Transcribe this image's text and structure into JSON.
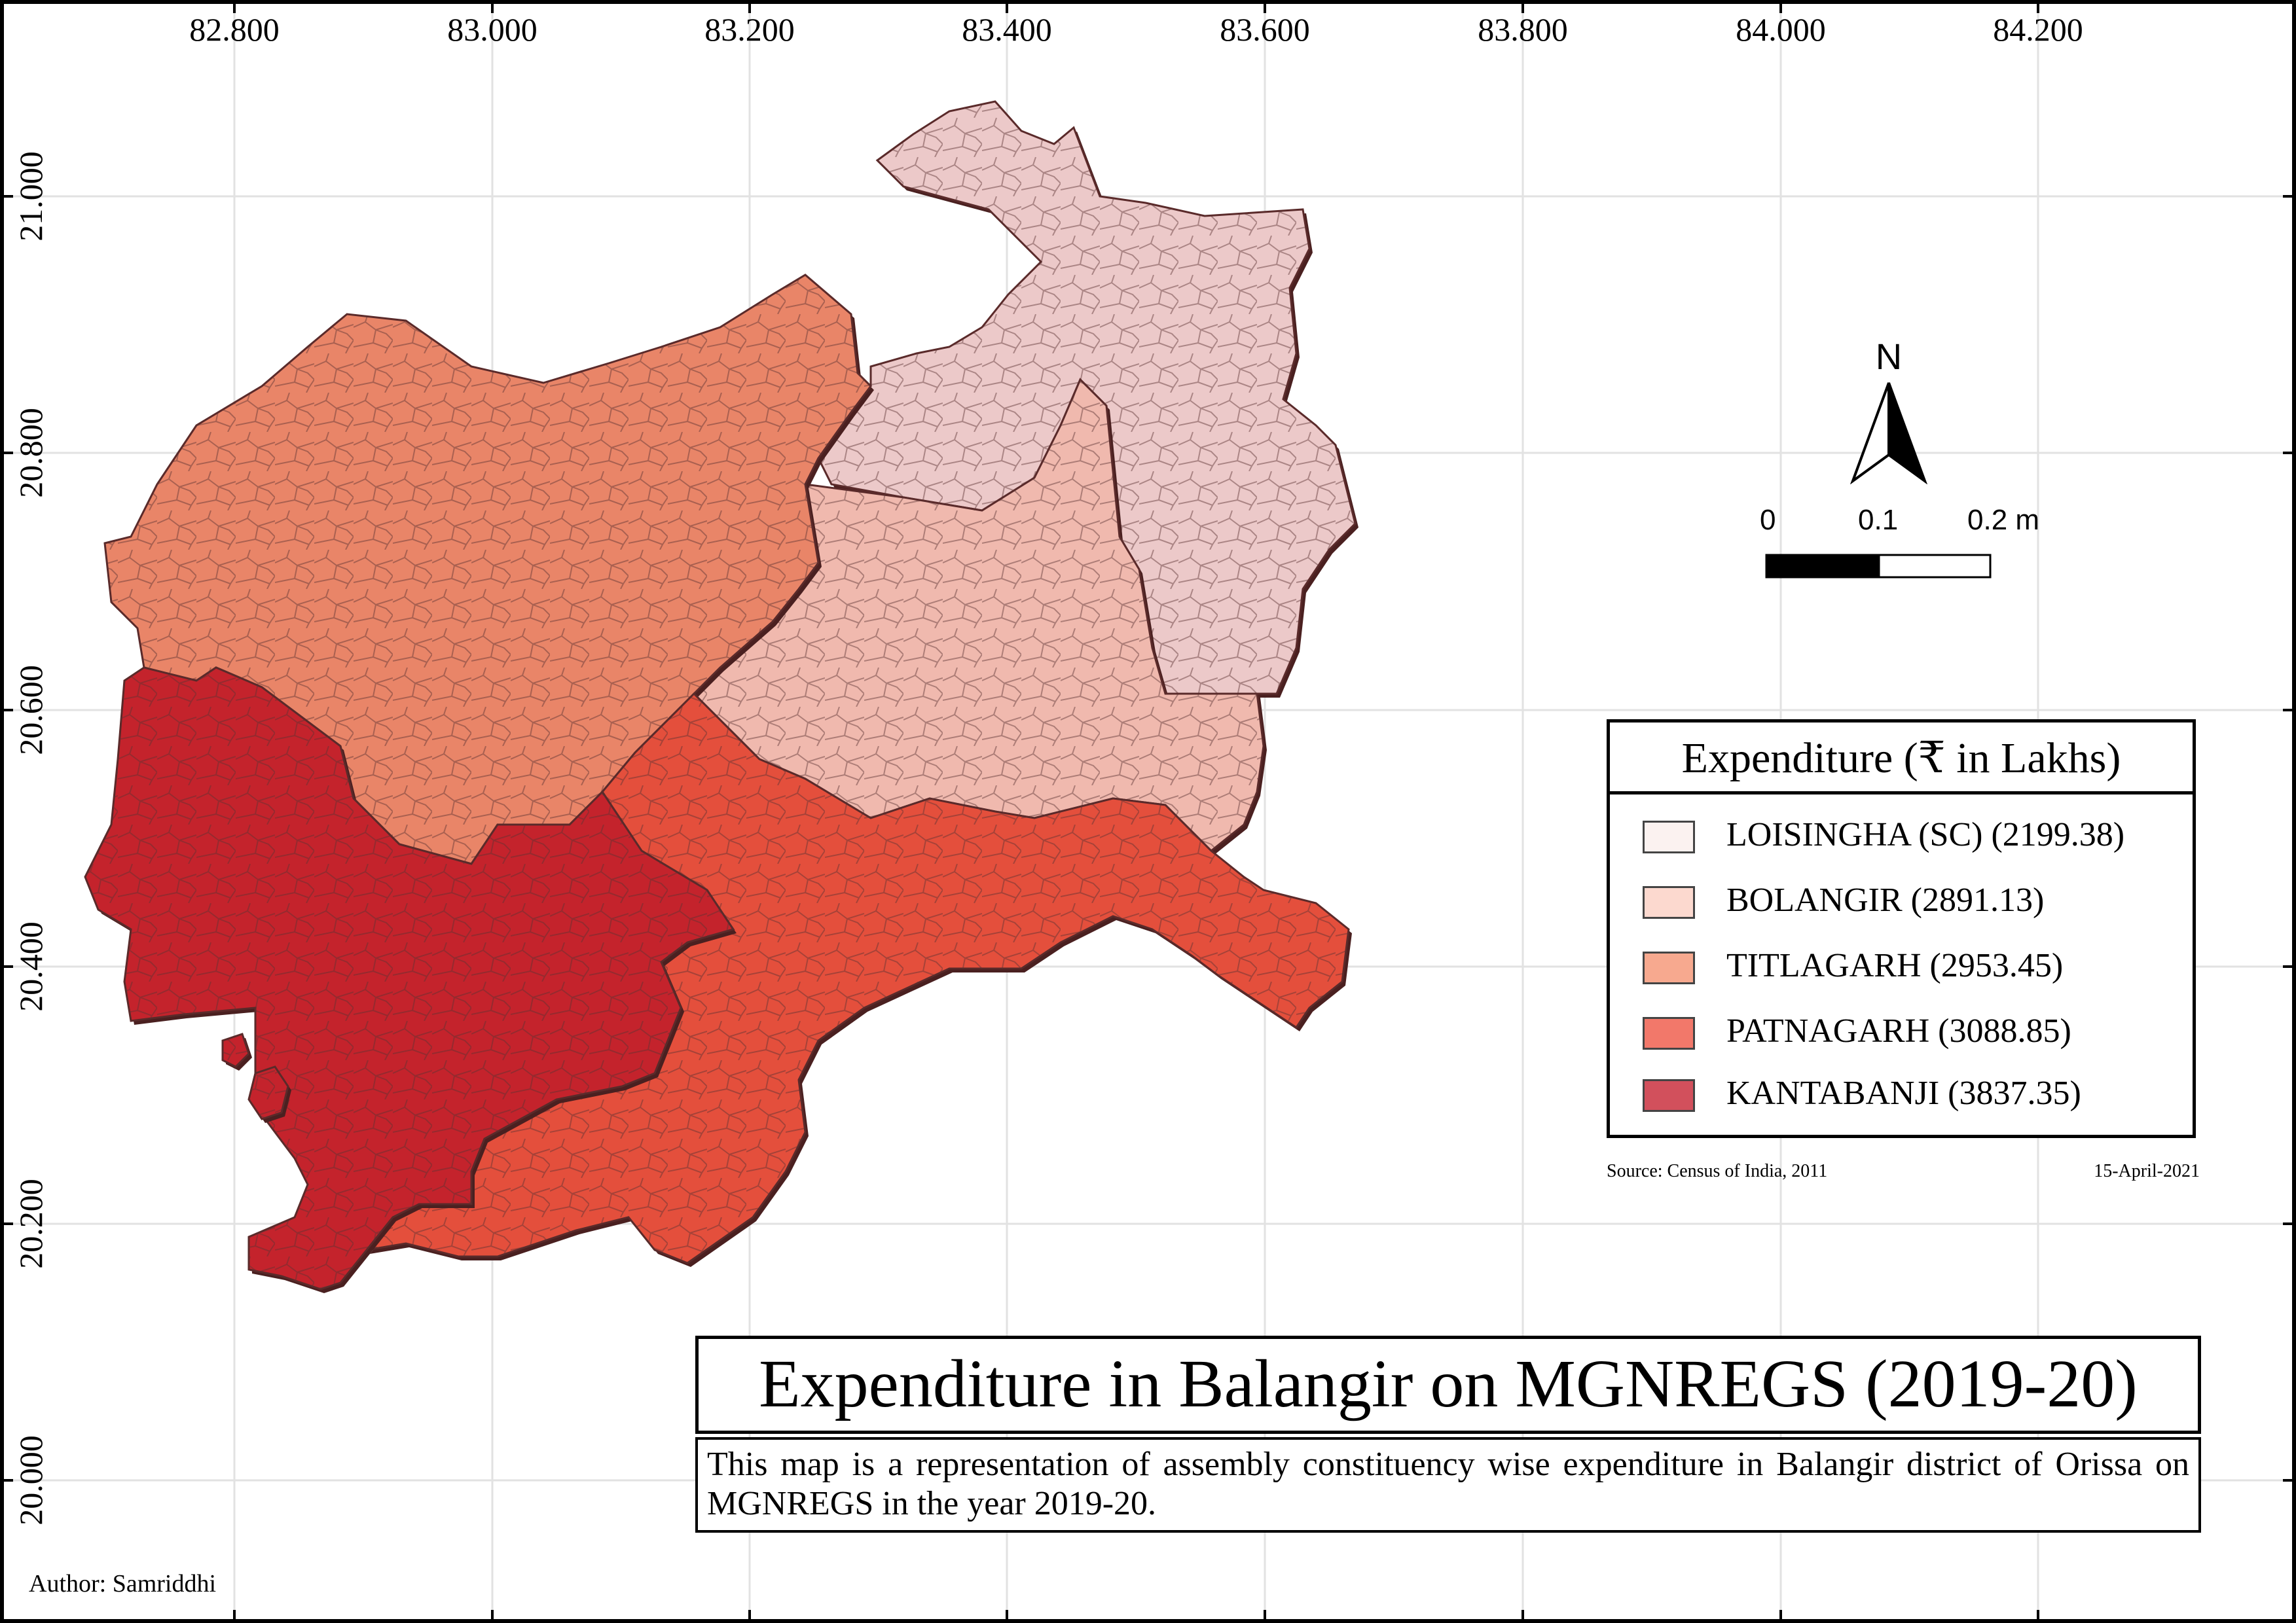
{
  "map": {
    "x_ticks": [
      "82.800",
      "83.000",
      "83.200",
      "83.400",
      "83.600",
      "83.800",
      "84.000",
      "84.200"
    ],
    "y_ticks": [
      "21.000",
      "20.800",
      "20.600",
      "20.400",
      "20.200",
      "20.000"
    ],
    "regions": [
      {
        "name": "LOISINGHA (SC)",
        "value": 2199.38,
        "color": "#ecc9c9"
      },
      {
        "name": "BOLANGIR",
        "value": 2891.13,
        "color": "#f0b9ae"
      },
      {
        "name": "TITLAGARH",
        "value": 2953.45,
        "color": "#e98568"
      },
      {
        "name": "PATNAGARH",
        "value": 3088.85,
        "color": "#e44f3c"
      },
      {
        "name": "KANTABANJI",
        "value": 3837.35,
        "color": "#c4232c"
      }
    ]
  },
  "legend": {
    "title": "Expenditure (₹ in Lakhs)",
    "items": [
      {
        "label": "LOISINGHA (SC) (2199.38)",
        "color": "#fbf2f0"
      },
      {
        "label": "BOLANGIR (2891.13)",
        "color": "#fcd9cf"
      },
      {
        "label": "TITLAGARH (2953.45)",
        "color": "#f7a98f"
      },
      {
        "label": "PATNAGARH (3088.85)",
        "color": "#f2786a"
      },
      {
        "label": "KANTABANJI (3837.35)",
        "color": "#d2505c"
      }
    ]
  },
  "north_arrow": {
    "label": "N"
  },
  "scale_bar": {
    "labels": [
      "0",
      "0.1",
      "0.2 m"
    ]
  },
  "source": "Source: Census of India, 2011",
  "date": "15-April-2021",
  "title": "Expenditure in Balangir on MGNREGS (2019-20)",
  "description": "This map is a representation of assembly constituency wise expenditure in Balangir district of Orissa on MGNREGS in the year 2019-20.",
  "author": "Author: Samriddhi"
}
